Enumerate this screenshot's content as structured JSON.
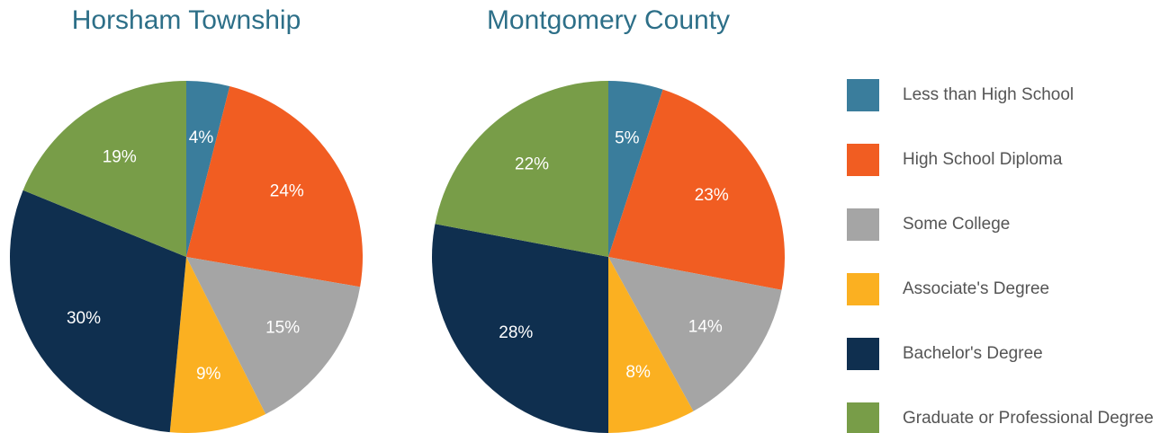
{
  "chart_data": [
    {
      "type": "pie",
      "title": "Horsham Township",
      "categories": [
        "Less than High School",
        "High School Diploma",
        "Some College",
        "Associate's Degree",
        "Bachelor's Degree",
        "Graduate or Professional Degree"
      ],
      "values": [
        4,
        24,
        15,
        9,
        30,
        19
      ],
      "value_labels": [
        "4%",
        "24%",
        "15%",
        "9%",
        "30%",
        "19%"
      ],
      "colors": [
        "#3a7d9c",
        "#f15d22",
        "#a5a5a5",
        "#fbb021",
        "#0f2f4f",
        "#789d48"
      ]
    },
    {
      "type": "pie",
      "title": "Montgomery County",
      "categories": [
        "Less than High School",
        "High School Diploma",
        "Some College",
        "Associate's Degree",
        "Bachelor's Degree",
        "Graduate or Professional Degree"
      ],
      "values": [
        5,
        23,
        14,
        8,
        28,
        22
      ],
      "value_labels": [
        "5%",
        "23%",
        "14%",
        "8%",
        "28%",
        "22%"
      ],
      "colors": [
        "#3a7d9c",
        "#f15d22",
        "#a5a5a5",
        "#fbb021",
        "#0f2f4f",
        "#789d48"
      ]
    }
  ]
}
